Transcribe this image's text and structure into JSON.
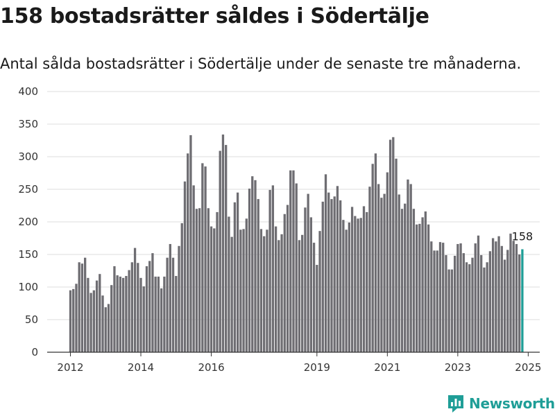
{
  "title": "158 bostadsrätter såldes i Södertälje",
  "subtitle": "Antal sålda bostadsrätter i Södertälje under de senaste tre månaderna.",
  "brand": {
    "name": "Newsworthy",
    "icon": "newsworthy-chart-icon",
    "color": "#1f9e97"
  },
  "chart_data": {
    "type": "bar",
    "title": "",
    "xlabel": "",
    "ylabel": "",
    "ylim": [
      0,
      400
    ],
    "yticks": [
      0,
      50,
      100,
      150,
      200,
      250,
      300,
      350,
      400
    ],
    "xticks": [
      {
        "label": "2012",
        "year": 2012
      },
      {
        "label": "2014",
        "year": 2014
      },
      {
        "label": "2016",
        "year": 2016
      },
      {
        "label": "2019",
        "year": 2019
      },
      {
        "label": "2021",
        "year": 2021
      },
      {
        "label": "2023",
        "year": 2023
      },
      {
        "label": "2025",
        "year": 2025
      }
    ],
    "grid": true,
    "start": "2012-01",
    "bar_color": "#6e6d72",
    "highlight_color": "#1f9e97",
    "last_label": "158",
    "values": [
      95,
      97,
      105,
      138,
      136,
      145,
      114,
      91,
      95,
      110,
      120,
      87,
      69,
      74,
      103,
      132,
      118,
      116,
      114,
      117,
      126,
      138,
      160,
      137,
      114,
      101,
      132,
      140,
      152,
      116,
      116,
      98,
      116,
      145,
      166,
      145,
      117,
      163,
      198,
      262,
      305,
      333,
      256,
      220,
      221,
      290,
      285,
      221,
      193,
      190,
      215,
      309,
      334,
      318,
      208,
      177,
      230,
      245,
      188,
      189,
      205,
      251,
      270,
      264,
      235,
      189,
      178,
      188,
      249,
      256,
      193,
      172,
      181,
      212,
      226,
      279,
      279,
      259,
      172,
      180,
      222,
      243,
      207,
      168,
      134,
      186,
      231,
      273,
      245,
      235,
      239,
      255,
      233,
      203,
      188,
      199,
      223,
      209,
      205,
      206,
      224,
      215,
      254,
      289,
      305,
      258,
      237,
      243,
      276,
      326,
      330,
      297,
      242,
      220,
      228,
      265,
      258,
      220,
      196,
      197,
      207,
      216,
      196,
      170,
      156,
      156,
      169,
      168,
      149,
      127,
      127,
      148,
      166,
      167,
      152,
      138,
      135,
      145,
      167,
      179,
      149,
      130,
      138,
      155,
      175,
      170,
      178,
      163,
      142,
      157,
      182,
      171,
      166,
      150,
      158
    ]
  }
}
